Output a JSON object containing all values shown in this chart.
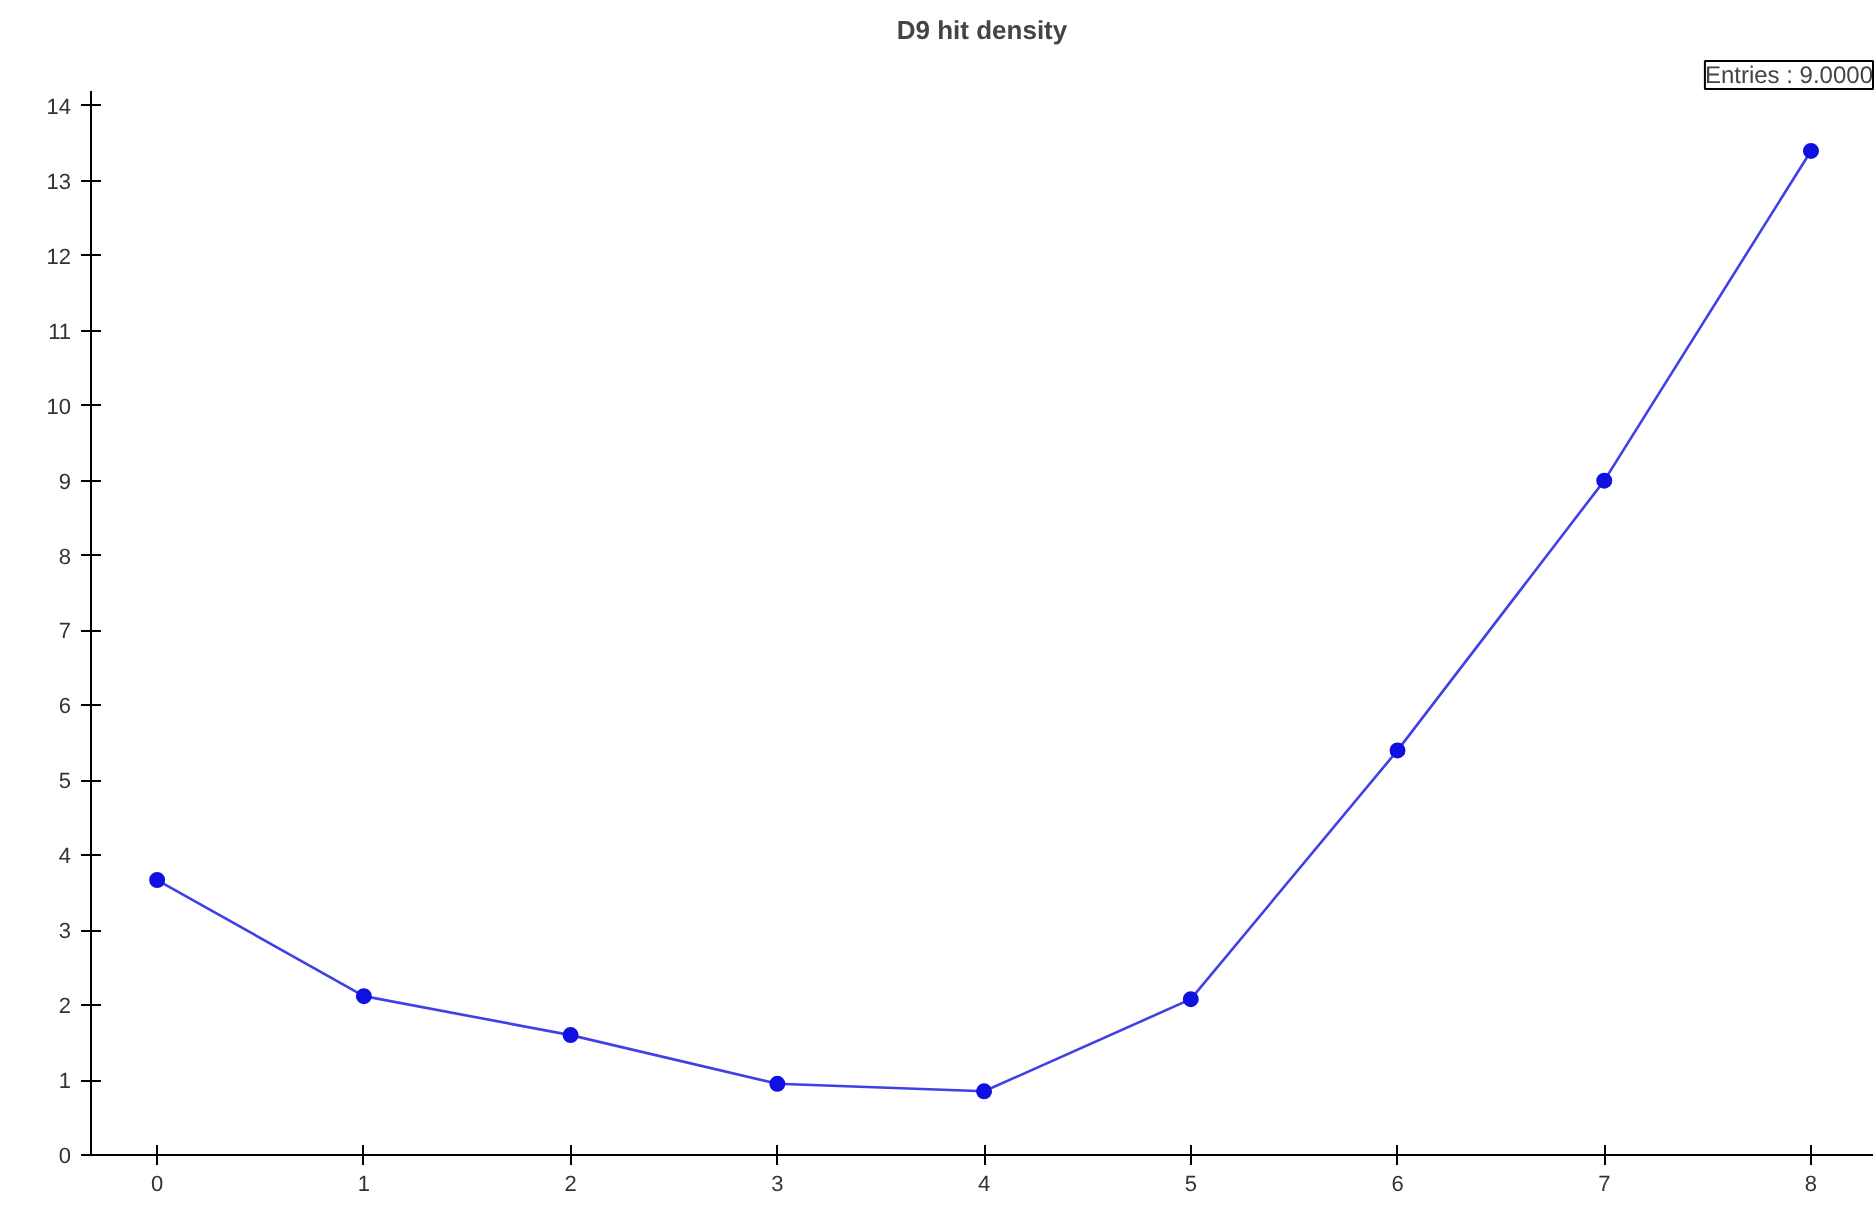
{
  "chart_data": {
    "type": "line",
    "title": "D9 hit density",
    "x": [
      0,
      1,
      2,
      3,
      4,
      5,
      6,
      7,
      8
    ],
    "series": [
      {
        "color": "#1010e0",
        "values": [
          3.67,
          2.12,
          1.6,
          0.95,
          0.85,
          2.08,
          5.4,
          9.0,
          13.4
        ]
      }
    ],
    "xlim": [
      -0.32,
      8.3
    ],
    "ylim": [
      0,
      14.2
    ],
    "xticks": [
      0,
      1,
      2,
      3,
      4,
      5,
      6,
      7,
      8
    ],
    "yticks": [
      0,
      1,
      2,
      3,
      4,
      5,
      6,
      7,
      8,
      9,
      10,
      11,
      12,
      13,
      14
    ],
    "marker": "circle",
    "line_style": "solid",
    "grid": false,
    "annotations": [
      "Entries : 9.0000"
    ]
  }
}
